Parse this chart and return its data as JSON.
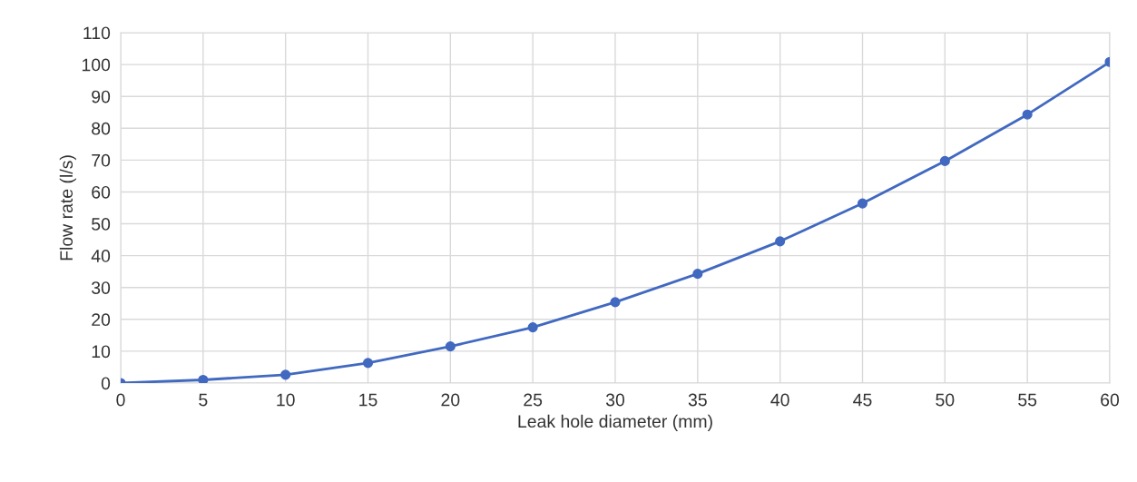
{
  "chart_data": {
    "type": "line",
    "xlabel": "Leak hole diameter (mm)",
    "ylabel": "Flow rate (l/s)",
    "x": [
      0,
      5,
      10,
      15,
      20,
      25,
      30,
      35,
      40,
      45,
      50,
      55,
      60
    ],
    "series": [
      {
        "color": "#4169c0",
        "values": [
          0,
          1,
          2.6,
          6.3,
          11.5,
          17.5,
          25.4,
          34.3,
          44.5,
          56.4,
          69.7,
          84.3,
          100.8
        ]
      }
    ],
    "xlim": [
      0,
      60
    ],
    "xticks": [
      0,
      5,
      10,
      15,
      20,
      25,
      30,
      35,
      40,
      45,
      50,
      55,
      60
    ],
    "ylim": [
      0,
      110
    ],
    "yticks": [
      0,
      10,
      20,
      30,
      40,
      50,
      60,
      70,
      80,
      90,
      100,
      110
    ],
    "grid": true,
    "marker": "circle",
    "line_style": "solid"
  }
}
